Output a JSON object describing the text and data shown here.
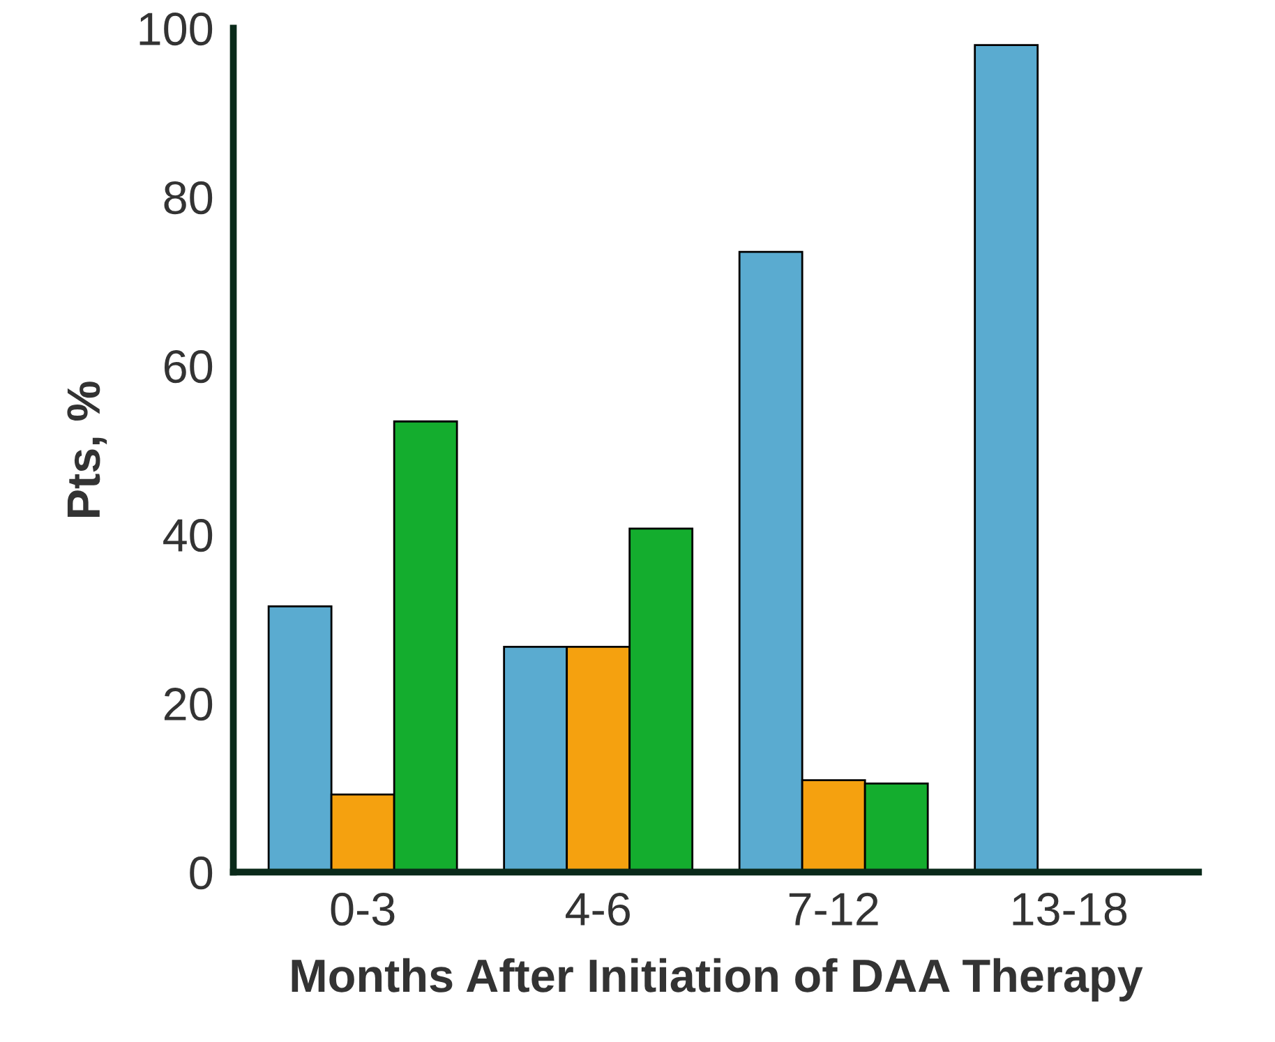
{
  "chart_data": {
    "type": "bar",
    "xlabel": "Months After Initiation of DAA Therapy",
    "ylabel": "Pts, %",
    "categories": [
      "0-3",
      "4-6",
      "7-12",
      "13-18"
    ],
    "series": [
      {
        "color": "#5aabd0",
        "values": [
          31.5,
          26.7,
          73.5,
          98.0
        ]
      },
      {
        "color": "#f5a10f",
        "values": [
          9.2,
          26.7,
          10.9,
          null
        ]
      },
      {
        "color": "#14ad2e",
        "values": [
          53.4,
          40.7,
          10.5,
          null
        ]
      }
    ],
    "ylim": [
      0,
      100
    ],
    "yticks": [
      0,
      20,
      40,
      60,
      80,
      100
    ],
    "grid": false,
    "legend": false
  }
}
